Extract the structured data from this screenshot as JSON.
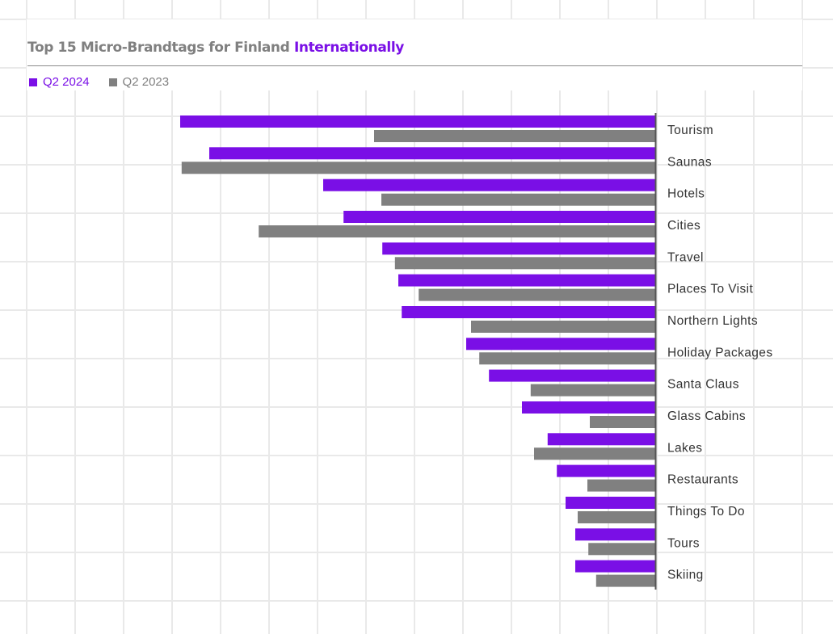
{
  "colors": {
    "current": "#7a0fe6",
    "previous": "#808080",
    "title_gray": "#808080",
    "label": "#333333"
  },
  "title": {
    "prefix": "Top 15 Micro-Brandtags for Finland",
    "highlight": "Internationally"
  },
  "chart_data": {
    "type": "bar",
    "orientation": "horizontal",
    "title": "Top 15 Micro-Brandtags for Finland Internationally",
    "xlabel": "",
    "ylabel": "",
    "categories": [
      "Tourism",
      "Saunas",
      "Hotels",
      "Cities",
      "Travel",
      "Places To Visit",
      "Northern Lights",
      "Holiday Packages",
      "Santa Claus",
      "Glass Cabins",
      "Lakes",
      "Restaurants",
      "Things To Do",
      "Tours",
      "Skiing"
    ],
    "series": [
      {
        "name": "Q2 2024",
        "color": "#7a0fe6",
        "values": [
          98,
          92,
          68.5,
          64.3,
          56.3,
          53,
          52.3,
          39,
          34.3,
          27.5,
          22.2,
          20.3,
          18.5,
          16.5,
          16.5
        ]
      },
      {
        "name": "Q2 2023",
        "color": "#808080",
        "values": [
          58,
          97.7,
          56.5,
          81.8,
          53.7,
          48.8,
          38,
          36.3,
          25.7,
          13.5,
          25,
          14,
          16,
          13.8,
          12.2
        ]
      }
    ],
    "xlim": [
      0,
      100
    ],
    "grid": true,
    "legend": "top-left"
  }
}
